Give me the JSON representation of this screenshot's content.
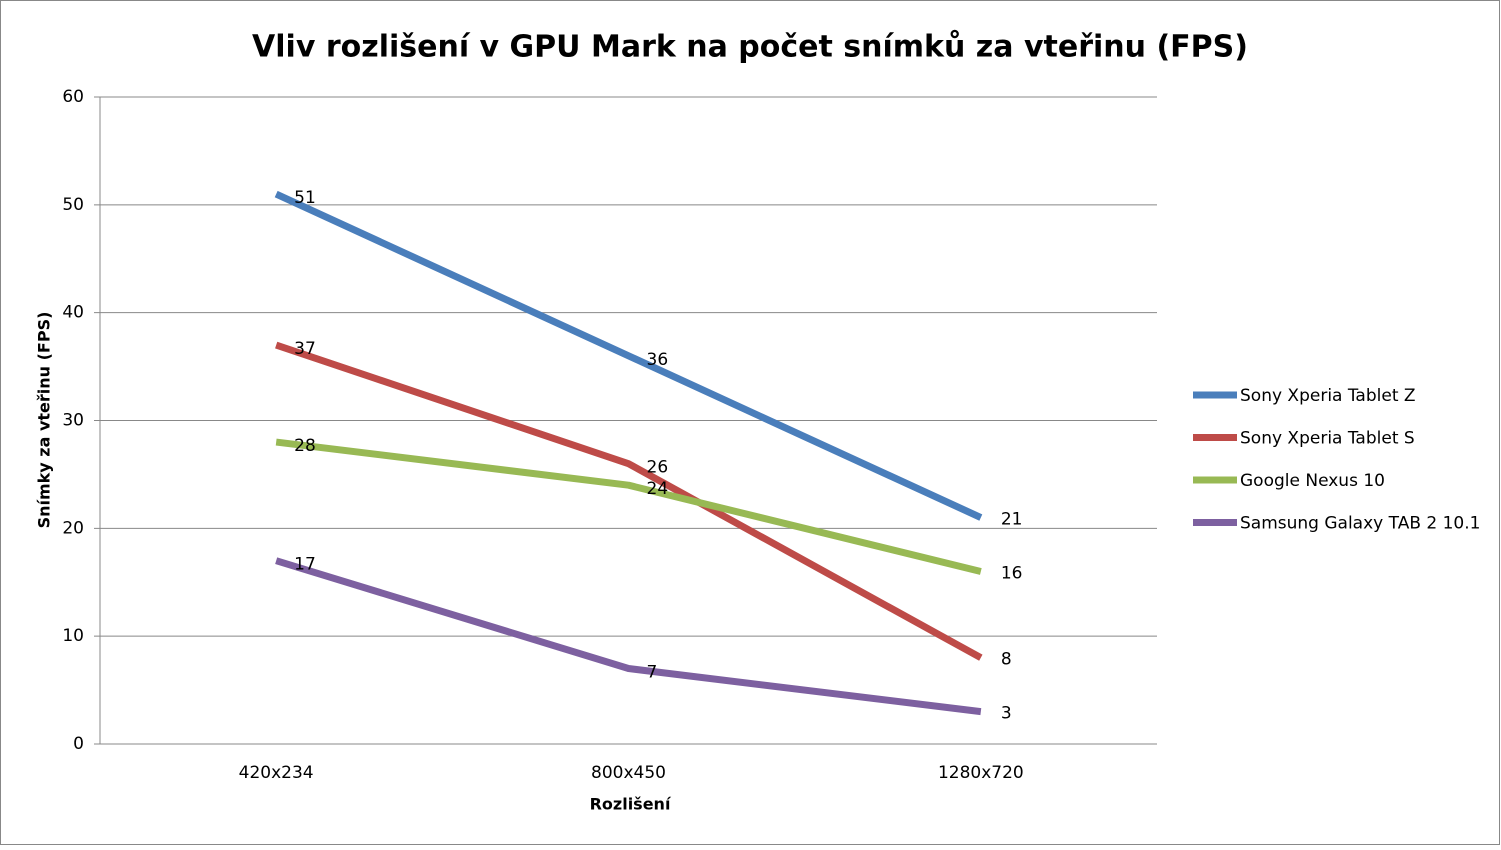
{
  "chart_data": {
    "type": "line",
    "title": "Vliv rozlišení v GPU Mark na počet snímků za vteřinu (FPS)",
    "x_label": "Rozlišení",
    "y_label": "Snímky za vteřinu (FPS)",
    "categories": [
      "420x234",
      "800x450",
      "1280x720"
    ],
    "series": [
      {
        "name": "Sony Xperia Tablet Z",
        "color": "#4a7ebb",
        "values": [
          51,
          36,
          21
        ]
      },
      {
        "name": "Sony Xperia Tablet S",
        "color": "#be4b48",
        "values": [
          37,
          26,
          8
        ]
      },
      {
        "name": "Google Nexus 10",
        "color": "#98b954",
        "values": [
          28,
          24,
          16
        ]
      },
      {
        "name": "Samsung Galaxy TAB 2 10.1",
        "color": "#7d60a0",
        "values": [
          17,
          7,
          3
        ]
      }
    ],
    "ylim": [
      0,
      60
    ],
    "yticks": [
      0,
      10,
      20,
      30,
      40,
      50,
      60
    ],
    "grid": true,
    "legend": "right",
    "data_labels": true
  }
}
